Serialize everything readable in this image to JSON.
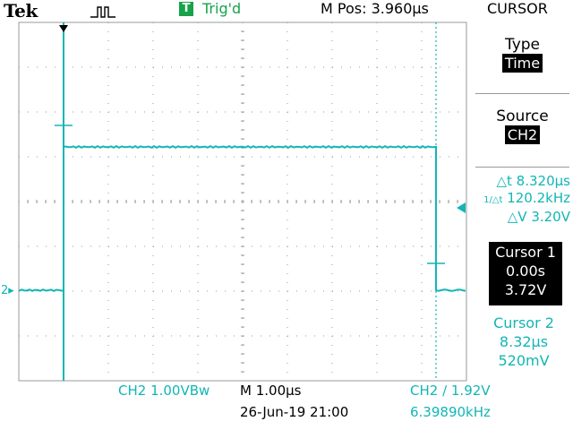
{
  "header": {
    "brand": "Tek",
    "acquisition_icon": "pulse-waveform-icon",
    "trigger_status_badge": "T",
    "trigger_status": "Trig'd",
    "horizontal_position": "M Pos: 3.960µs"
  },
  "menu": {
    "title": "CURSOR",
    "type_label": "Type",
    "type_value": "Time",
    "source_label": "Source",
    "source_value": "CH2"
  },
  "readouts": {
    "delta_t": "△t 8.320µs",
    "inv_delta_t": "120.2kHz",
    "inv_delta_t_symbol": "1/△t",
    "delta_v": "△V 3.20V"
  },
  "cursor1": {
    "label": "Cursor 1",
    "time": "0.00s",
    "voltage": "3.72V"
  },
  "cursor2": {
    "label": "Cursor 2",
    "time": "8.32µs",
    "voltage": "520mV"
  },
  "status": {
    "channel_scale": "CH2   1.00VBᴡ",
    "timebase": "M 1.00µs",
    "datetime": "26-Jun-19 21:00",
    "trigger_setting": "CH2 ∕ 1.92V",
    "trigger_frequency": "6.39890kHz"
  },
  "channel_marker": "2",
  "colors": {
    "trace": "#13b5b5",
    "trigger_badge": "#16a34a",
    "background": "#ffffff",
    "grid": "#9a9a9a"
  },
  "waveform": {
    "channel": "CH2",
    "volts_per_div": 1.0,
    "time_per_div_us": 1.0,
    "low_level_v": 0.52,
    "high_level_v": 3.72,
    "rise_time_offset_us": 0.0,
    "fall_time_offset_us": 8.32
  }
}
